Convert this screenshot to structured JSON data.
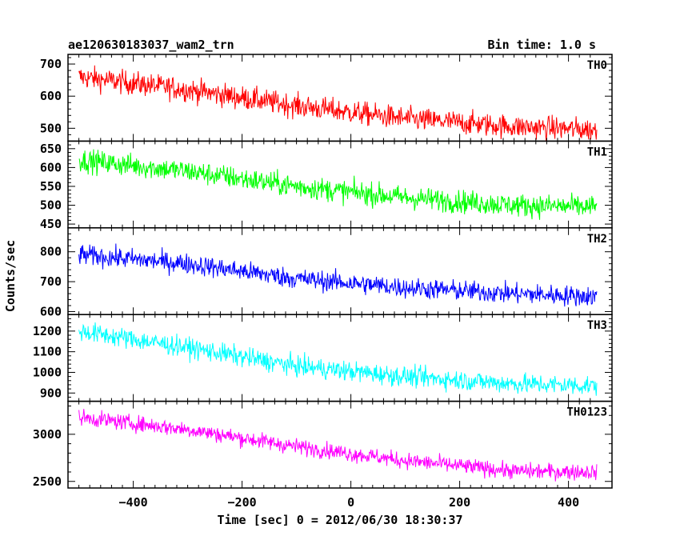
{
  "chart_data": {
    "type": "line",
    "title": "ae120630183037_wam2_trn",
    "bin_time_label": "Bin time: 1.0 s",
    "xlabel": "Time [sec] 0 = 2012/06/30 18:30:37",
    "ylabel": "Counts/sec",
    "x_range": [
      -500,
      452
    ],
    "xlim": [
      -520,
      480
    ],
    "x_ticks": [
      -400,
      -200,
      0,
      200,
      400
    ],
    "x_tick_labels": [
      "−400",
      "−200",
      "0",
      "200",
      "400"
    ],
    "panels": [
      {
        "name": "TH0",
        "color": "#ff0000",
        "ylim": [
          460,
          730
        ],
        "y_ticks": [
          500,
          600,
          700
        ],
        "y_tick_labels": [
          "500",
          "600",
          "700"
        ],
        "trend": [
          [
            -500,
            660
          ],
          [
            -300,
            620
          ],
          [
            -100,
            570
          ],
          [
            100,
            530
          ],
          [
            300,
            505
          ],
          [
            452,
            495
          ]
        ],
        "noise_amplitude": 30
      },
      {
        "name": "TH1",
        "color": "#00ff00",
        "ylim": [
          440,
          670
        ],
        "y_ticks": [
          450,
          500,
          550,
          600,
          650
        ],
        "y_tick_labels": [
          "450",
          "500",
          "550",
          "600",
          "650"
        ],
        "trend": [
          [
            -500,
            620
          ],
          [
            -300,
            590
          ],
          [
            -100,
            550
          ],
          [
            100,
            520
          ],
          [
            300,
            500
          ],
          [
            452,
            495
          ]
        ],
        "noise_amplitude": 25
      },
      {
        "name": "TH2",
        "color": "#0000ff",
        "ylim": [
          590,
          880
        ],
        "y_ticks": [
          600,
          700,
          800
        ],
        "y_tick_labels": [
          "600",
          "700",
          "800"
        ],
        "trend": [
          [
            -500,
            790
          ],
          [
            -300,
            760
          ],
          [
            -100,
            710
          ],
          [
            100,
            680
          ],
          [
            300,
            660
          ],
          [
            452,
            650
          ]
        ],
        "noise_amplitude": 28
      },
      {
        "name": "TH3",
        "color": "#00ffff",
        "ylim": [
          860,
          1280
        ],
        "y_ticks": [
          900,
          1000,
          1100,
          1200
        ],
        "y_tick_labels": [
          "900",
          "1000",
          "1100",
          "1200"
        ],
        "trend": [
          [
            -500,
            1200
          ],
          [
            -300,
            1120
          ],
          [
            -100,
            1030
          ],
          [
            100,
            980
          ],
          [
            300,
            945
          ],
          [
            452,
            935
          ]
        ],
        "noise_amplitude": 40
      },
      {
        "name": "TH0123",
        "color": "#ff00ff",
        "ylim": [
          2430,
          3350
        ],
        "y_ticks": [
          2500,
          3000
        ],
        "y_tick_labels": [
          "2500",
          "3000"
        ],
        "trend": [
          [
            -500,
            3180
          ],
          [
            -300,
            3050
          ],
          [
            -100,
            2870
          ],
          [
            100,
            2720
          ],
          [
            300,
            2610
          ],
          [
            452,
            2600
          ]
        ],
        "noise_amplitude": 70
      }
    ]
  }
}
